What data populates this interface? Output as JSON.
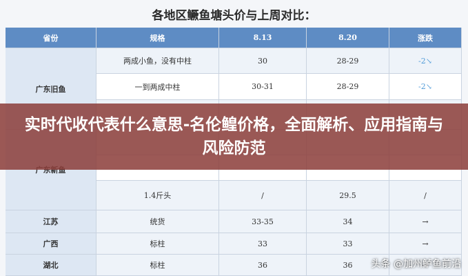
{
  "title": "各地区鳜鱼塘头价与上周对比：",
  "table": {
    "header": [
      "省份",
      "规格",
      "8.13",
      "8.20",
      "涨跌"
    ],
    "groups": [
      {
        "province": "广东旧鱼",
        "rows": [
          [
            "两成小鱼，没有中柱",
            "30",
            "28-29",
            "-2↘"
          ],
          [
            "一到两成中柱",
            "30-31",
            "28-29",
            "-2↘"
          ]
        ]
      },
      {
        "province": "广东新鱼",
        "rows": [
          [
            "1.4斤头",
            "/",
            "29.5",
            "/"
          ]
        ]
      },
      {
        "province": "江苏",
        "rows": [
          [
            "统货",
            "33-35",
            "34",
            "→"
          ]
        ]
      },
      {
        "province": "广西",
        "rows": [
          [
            "标柱",
            "33",
            "33",
            "→"
          ]
        ]
      },
      {
        "province": "湖北",
        "rows": [
          [
            "标柱",
            "36",
            "36",
            "→"
          ]
        ]
      }
    ]
  },
  "banner": "实时代收代表什么意思-名伦鳇价格，全面解析、应用指南与风险防范",
  "watermark": "头条 @加州鲈鱼前沿"
}
